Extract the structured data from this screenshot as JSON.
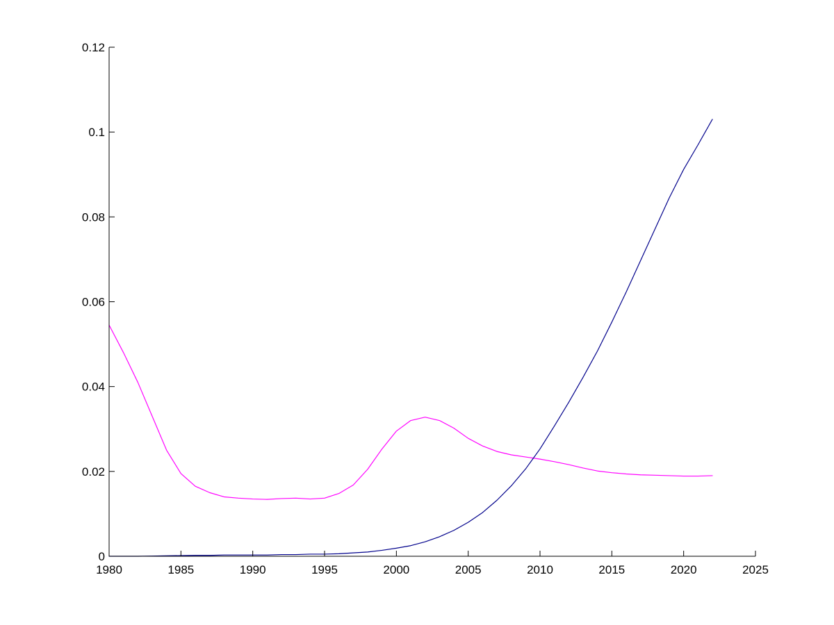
{
  "chart_data": {
    "type": "line",
    "title": "",
    "xlabel": "",
    "ylabel": "",
    "xlim": [
      1980,
      2025
    ],
    "ylim": [
      0,
      0.12
    ],
    "grid": false,
    "legend": "none",
    "x_ticks": [
      "1980",
      "1985",
      "1990",
      "1995",
      "2000",
      "2005",
      "2010",
      "2015",
      "2020",
      "2025"
    ],
    "y_ticks": [
      "0",
      "0.02",
      "0.04",
      "0.06",
      "0.08",
      "0.1",
      "0.12"
    ],
    "x": [
      1980,
      1981,
      1982,
      1983,
      1984,
      1985,
      1986,
      1987,
      1988,
      1989,
      1990,
      1991,
      1992,
      1993,
      1994,
      1995,
      1996,
      1997,
      1998,
      1999,
      2000,
      2001,
      2002,
      2003,
      2004,
      2005,
      2006,
      2007,
      2008,
      2009,
      2010,
      2011,
      2012,
      2013,
      2014,
      2015,
      2016,
      2017,
      2018,
      2019,
      2020,
      2021,
      2022
    ],
    "series": [
      {
        "color": "#FF00FF",
        "values": [
          0.0545,
          0.048,
          0.041,
          0.033,
          0.025,
          0.0195,
          0.0165,
          0.015,
          0.014,
          0.0137,
          0.0135,
          0.0134,
          0.0136,
          0.0137,
          0.0135,
          0.0137,
          0.0148,
          0.0168,
          0.0205,
          0.0253,
          0.0295,
          0.032,
          0.0328,
          0.032,
          0.0302,
          0.0278,
          0.026,
          0.0247,
          0.0239,
          0.0234,
          0.0229,
          0.0223,
          0.0216,
          0.0208,
          0.0201,
          0.0197,
          0.0194,
          0.0192,
          0.0191,
          0.019,
          0.0189,
          0.0189,
          0.019
        ]
      },
      {
        "color": "#00008B",
        "values": [
          0.0,
          0.0,
          0.0,
          5e-05,
          0.0001,
          0.00015,
          0.0002,
          0.0002,
          0.0003,
          0.0003,
          0.0003,
          0.0003,
          0.0004,
          0.0004,
          0.0005,
          0.0005,
          0.0006,
          0.0008,
          0.001,
          0.0014,
          0.0019,
          0.0025,
          0.0034,
          0.0046,
          0.0061,
          0.008,
          0.0103,
          0.0132,
          0.0166,
          0.0206,
          0.0253,
          0.0307,
          0.0363,
          0.0422,
          0.0484,
          0.0552,
          0.0623,
          0.0697,
          0.0771,
          0.0845,
          0.0912,
          0.097,
          0.103
        ]
      }
    ]
  }
}
